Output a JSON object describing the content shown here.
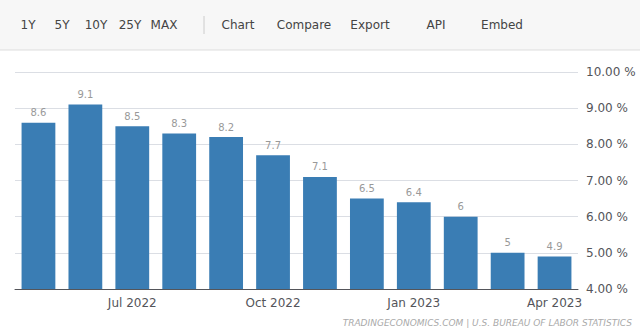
{
  "chart_data": {
    "type": "bar",
    "annotations": [
      "1Y",
      "5Y",
      "10Y",
      "25Y",
      "MAX",
      "Chart",
      "Compare",
      "Export",
      "API",
      "Embed",
      "TRADINGECONOMICS.COM | U.S. BUREAU OF LABOR STATISTICS"
    ],
    "categories": [
      null,
      null,
      "Jul 2022",
      null,
      null,
      "Oct 2022",
      null,
      null,
      "Jan 2023",
      null,
      null,
      "Apr 2023"
    ],
    "values": [
      8.6,
      9.1,
      8.5,
      8.3,
      8.2,
      7.7,
      7.1,
      6.5,
      6.4,
      6.0,
      5.0,
      4.9
    ],
    "color": "#3a7db4",
    "ylim": [
      4.0,
      10.0
    ],
    "yticks": [
      {
        "value": 4.0,
        "label": "4.00 %"
      },
      {
        "value": 5.0,
        "label": "5.00 %"
      },
      {
        "value": 6.0,
        "label": "6.00 %"
      },
      {
        "value": 7.0,
        "label": "7.00 %"
      },
      {
        "value": 8.0,
        "label": "8.00 %"
      },
      {
        "value": 9.0,
        "label": "9.00 %"
      },
      {
        "value": 10.0,
        "label": "10.00 %"
      }
    ],
    "grid": true,
    "data_labels": true
  }
}
